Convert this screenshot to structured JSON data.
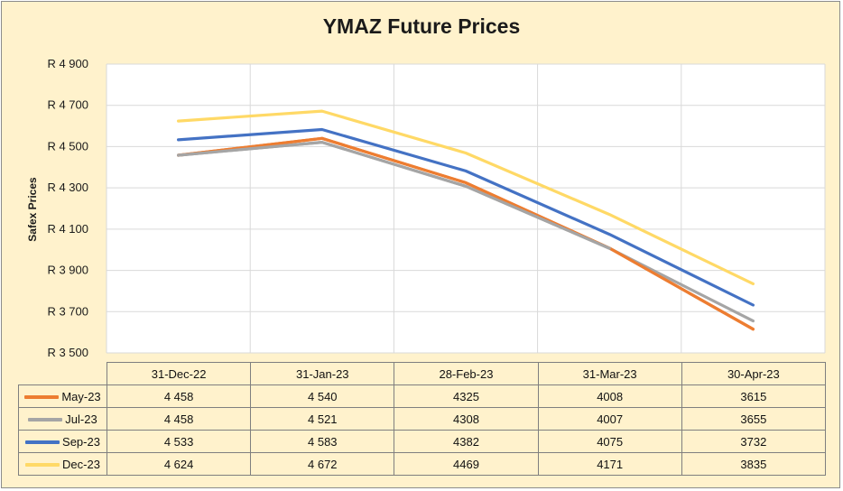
{
  "chart_data": {
    "type": "line",
    "title": "YMAZ Future Prices",
    "xlabel": "",
    "ylabel": "Safex Prices",
    "categories": [
      "31-Dec-22",
      "31-Jan-23",
      "28-Feb-23",
      "31-Mar-23",
      "30-Apr-23"
    ],
    "ylim": [
      3500,
      4900
    ],
    "yticks": [
      3500,
      3700,
      3900,
      4100,
      4300,
      4500,
      4700,
      4900
    ],
    "ytick_labels": [
      "R 3 500",
      "R 3 700",
      "R 3 900",
      "R 4 100",
      "R 4 300",
      "R 4 500",
      "R 4 700",
      "R 4 900"
    ],
    "grid": true,
    "legend": "data table below chart",
    "series": [
      {
        "name": "May-23",
        "color": "#ed7d31",
        "values": [
          4458,
          4540,
          4325,
          4008,
          3615
        ],
        "labels": [
          "4 458",
          "4 540",
          "4325",
          "4008",
          "3615"
        ]
      },
      {
        "name": "Jul-23",
        "color": "#a5a5a5",
        "values": [
          4458,
          4521,
          4308,
          4007,
          3655
        ],
        "labels": [
          "4 458",
          "4 521",
          "4308",
          "4007",
          "3655"
        ]
      },
      {
        "name": "Sep-23",
        "color": "#4472c4",
        "values": [
          4533,
          4583,
          4382,
          4075,
          3732
        ],
        "labels": [
          "4 533",
          "4 583",
          "4382",
          "4075",
          "3732"
        ]
      },
      {
        "name": "Dec-23",
        "color": "#ffd966",
        "values": [
          4624,
          4672,
          4469,
          4171,
          3835
        ],
        "labels": [
          "4 624",
          "4 672",
          "4469",
          "4171",
          "3835"
        ]
      }
    ]
  }
}
